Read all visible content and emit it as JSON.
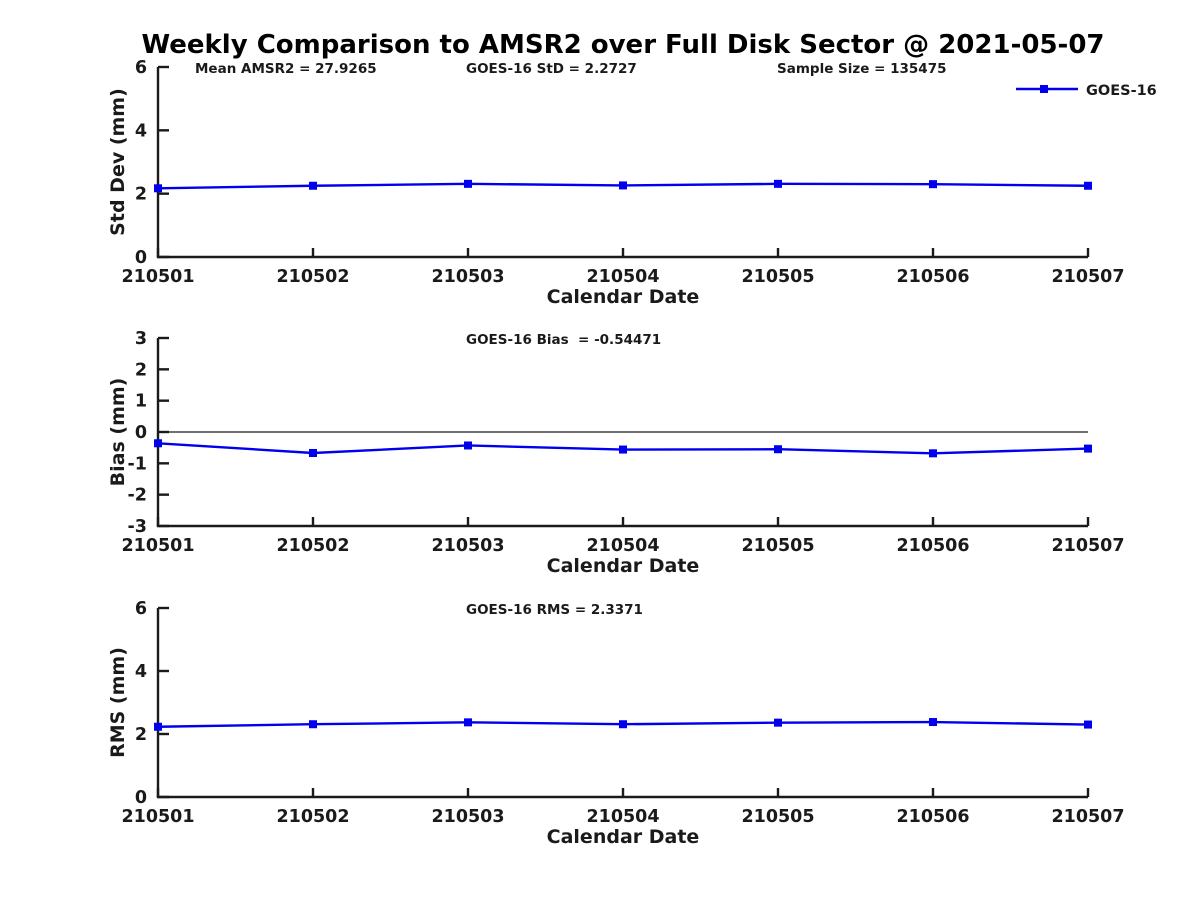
{
  "title": "Weekly Comparison to AMSR2 over Full Disk Sector @ 2021-05-07",
  "colors": {
    "series": "#0000EE",
    "axis": "#1a1a1a",
    "text": "#1a1a1a",
    "zero_line": "#1a1a1a",
    "background": "#ffffff"
  },
  "legend": {
    "label": "GOES-16",
    "position": "top-right",
    "marker": "filled-square",
    "line_color": "#0000EE"
  },
  "x_axis": {
    "label": "Calendar Date",
    "categories": [
      "210501",
      "210502",
      "210503",
      "210504",
      "210505",
      "210506",
      "210507"
    ]
  },
  "chart_data": [
    {
      "type": "line",
      "name": "std-dev",
      "ylabel": "Std Dev (mm)",
      "xlabel": "Calendar Date",
      "ylim": [
        0,
        6
      ],
      "yticks": [
        0,
        2,
        4,
        6
      ],
      "grid": false,
      "zero_line": false,
      "categories": [
        "210501",
        "210502",
        "210503",
        "210504",
        "210505",
        "210506",
        "210507"
      ],
      "series": [
        {
          "name": "GOES-16",
          "values": [
            2.17,
            2.25,
            2.31,
            2.26,
            2.31,
            2.3,
            2.25
          ]
        }
      ],
      "annotations": [
        "Mean AMSR2 = 27.9265",
        "GOES-16 StD = 2.2727",
        "Sample Size = 135475"
      ],
      "show_legend": true
    },
    {
      "type": "line",
      "name": "bias",
      "ylabel": "Bias (mm)",
      "xlabel": "Calendar Date",
      "ylim": [
        -3,
        3
      ],
      "yticks": [
        -3,
        -2,
        -1,
        0,
        1,
        2,
        3
      ],
      "grid": false,
      "zero_line": true,
      "categories": [
        "210501",
        "210502",
        "210503",
        "210504",
        "210505",
        "210506",
        "210507"
      ],
      "series": [
        {
          "name": "GOES-16",
          "values": [
            -0.36,
            -0.67,
            -0.43,
            -0.56,
            -0.55,
            -0.68,
            -0.53
          ]
        }
      ],
      "annotations": [
        "GOES-16 Bias  = -0.54471"
      ],
      "show_legend": false
    },
    {
      "type": "line",
      "name": "rms",
      "ylabel": "RMS (mm)",
      "xlabel": "Calendar Date",
      "ylim": [
        0,
        6
      ],
      "yticks": [
        0,
        2,
        4,
        6
      ],
      "grid": false,
      "zero_line": false,
      "categories": [
        "210501",
        "210502",
        "210503",
        "210504",
        "210505",
        "210506",
        "210507"
      ],
      "series": [
        {
          "name": "GOES-16",
          "values": [
            2.23,
            2.31,
            2.37,
            2.31,
            2.36,
            2.38,
            2.3
          ]
        }
      ],
      "annotations": [
        "GOES-16 RMS = 2.3371"
      ],
      "show_legend": false
    }
  ]
}
